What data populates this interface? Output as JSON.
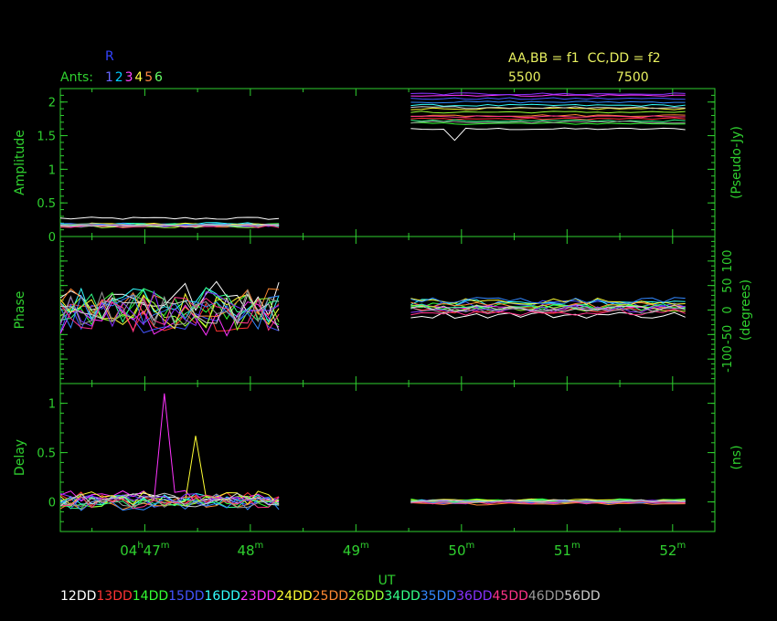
{
  "header": {
    "marker": "R",
    "ants_label": "Ants:",
    "ant_digits": [
      {
        "text": "1",
        "color": "#6666ff"
      },
      {
        "text": "2",
        "color": "#00ccff"
      },
      {
        "text": "3",
        "color": "#ff44ff"
      },
      {
        "text": "4",
        "color": "#ffff44"
      },
      {
        "text": "5",
        "color": "#ff8844"
      },
      {
        "text": "6",
        "color": "#66ff66"
      }
    ],
    "freq_line1": "AA,BB = f1  CC,DD = f2",
    "freq_a": "5500",
    "freq_b": "7500"
  },
  "colors": {
    "frame": "#2fd02f",
    "text_yellow": "#e8f060",
    "background": "#000000"
  },
  "chart_data": {
    "type": "line",
    "x_axis": {
      "label": "UT",
      "range_minutes": [
        46.2,
        52.4
      ],
      "ticks": [
        {
          "value": 47,
          "hours": "04",
          "label": "47"
        },
        {
          "value": 48,
          "label": "48"
        },
        {
          "value": 49,
          "label": "49"
        },
        {
          "value": 50,
          "label": "50"
        },
        {
          "value": 51,
          "label": "51"
        },
        {
          "value": 52,
          "label": "52"
        }
      ],
      "hour_unit": "h",
      "minute_unit": "m"
    },
    "panels": [
      {
        "ylabel": "Amplitude",
        "right_label": "(Pseudo-Jy)",
        "ylim": [
          0,
          2.2
        ],
        "ticks": [
          "0",
          "0.5",
          "1",
          "1.5",
          "2"
        ],
        "tick_values": [
          0,
          0.5,
          1,
          1.5,
          2
        ]
      },
      {
        "ylabel": "Phase",
        "right_label": "(degrees)",
        "ylim": [
          -150,
          150
        ],
        "right_ticks": [
          "-100",
          "-50",
          "0",
          "50",
          "100"
        ],
        "right_tick_values": [
          -100,
          -50,
          0,
          50,
          100
        ]
      },
      {
        "ylabel": "Delay",
        "right_label": "(ns)",
        "ylim": [
          -0.3,
          1.2
        ],
        "ticks": [
          "0",
          "0.5",
          "1"
        ],
        "tick_values": [
          0,
          0.5,
          1
        ]
      }
    ],
    "segments": [
      {
        "x_start": 46.2,
        "x_end": 48.27
      },
      {
        "x_start": 49.52,
        "x_end": 52.12
      }
    ],
    "series": [
      {
        "name": "12DD",
        "color": "#ffffff",
        "amp": [
          0.27,
          1.6
        ],
        "phase": [
          25,
          -10
        ],
        "delay": [
          0.02,
          0.01
        ]
      },
      {
        "name": "13DD",
        "color": "#ff3333",
        "amp": [
          0.17,
          1.75
        ],
        "phase": [
          -5,
          0
        ],
        "delay": [
          0.03,
          0.0
        ]
      },
      {
        "name": "14DD",
        "color": "#33ff33",
        "amp": [
          0.18,
          1.68
        ],
        "phase": [
          5,
          8
        ],
        "delay": [
          0.01,
          0.02
        ]
      },
      {
        "name": "15DD",
        "color": "#4455ff",
        "amp": [
          0.16,
          2.05
        ],
        "phase": [
          -10,
          12
        ],
        "delay": [
          0.0,
          -0.01
        ]
      },
      {
        "name": "16DD",
        "color": "#33ffff",
        "amp": [
          0.19,
          1.95
        ],
        "phase": [
          10,
          15
        ],
        "delay": [
          0.02,
          0.01
        ]
      },
      {
        "name": "23DD",
        "color": "#ff33ff",
        "amp": [
          0.17,
          2.1
        ],
        "phase": [
          -15,
          5
        ],
        "delay": [
          0.05,
          0.0
        ]
      },
      {
        "name": "24DD",
        "color": "#ffff33",
        "amp": [
          0.18,
          1.9
        ],
        "phase": [
          0,
          18
        ],
        "delay": [
          0.04,
          0.02
        ]
      },
      {
        "name": "25DD",
        "color": "#ff8833",
        "amp": [
          0.16,
          1.8
        ],
        "phase": [
          8,
          10
        ],
        "delay": [
          -0.01,
          -0.02
        ]
      },
      {
        "name": "26DD",
        "color": "#99ff33",
        "amp": [
          0.15,
          1.85
        ],
        "phase": [
          -8,
          4
        ],
        "delay": [
          0.01,
          0.0
        ]
      },
      {
        "name": "34DD",
        "color": "#33ff88",
        "amp": [
          0.17,
          1.72
        ],
        "phase": [
          12,
          6
        ],
        "delay": [
          0.0,
          0.01
        ]
      },
      {
        "name": "35DD",
        "color": "#3388ff",
        "amp": [
          0.18,
          2.0
        ],
        "phase": [
          -3,
          20
        ],
        "delay": [
          -0.02,
          0.0
        ]
      },
      {
        "name": "36DD",
        "color": "#8833ff",
        "amp": [
          0.16,
          2.12
        ],
        "phase": [
          4,
          2
        ],
        "delay": [
          0.03,
          0.01
        ]
      },
      {
        "name": "45DD",
        "color": "#ff3388",
        "amp": [
          0.15,
          1.78
        ],
        "phase": [
          -12,
          -5
        ],
        "delay": [
          0.0,
          -0.01
        ]
      },
      {
        "name": "46DD",
        "color": "#999999",
        "amp": [
          0.17,
          1.7
        ],
        "phase": [
          2,
          0
        ],
        "delay": [
          0.01,
          0.0
        ]
      },
      {
        "name": "56DD",
        "color": "#cccccc",
        "amp": [
          0.16,
          1.92
        ],
        "phase": [
          -6,
          3
        ],
        "delay": [
          0.02,
          0.01
        ]
      }
    ],
    "annotations": [
      {
        "panel": "delay",
        "series": "23DD",
        "x": 47.15,
        "y": 1.1
      },
      {
        "panel": "delay",
        "series": "24DD",
        "x": 47.5,
        "y": 0.67
      },
      {
        "panel": "amplitude",
        "series": "12DD",
        "x": 49.97,
        "y": 1.43
      }
    ]
  }
}
